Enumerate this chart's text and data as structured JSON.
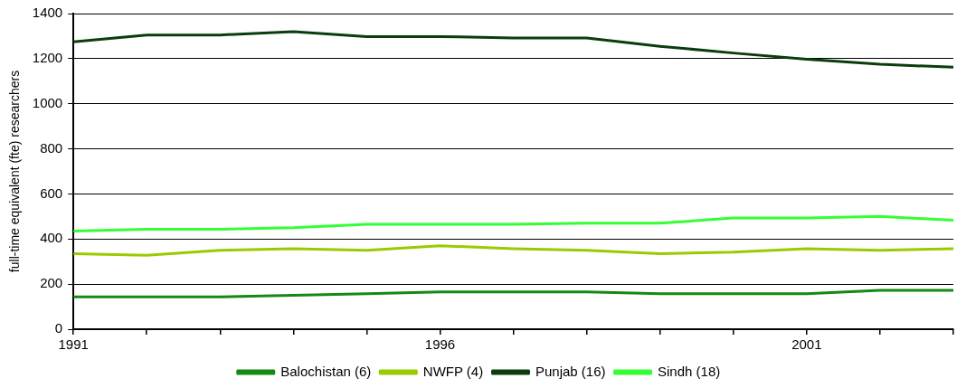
{
  "chart_data": {
    "type": "line",
    "ylabel": "full-time equivalent (fte) researchers",
    "x": [
      1991,
      1992,
      1993,
      1994,
      1995,
      1996,
      1997,
      1998,
      1999,
      2000,
      2001,
      2002,
      2003
    ],
    "xlim": [
      1991,
      2003
    ],
    "xticks": [
      1991,
      {
        "value": 1992,
        "label": null
      },
      {
        "value": 1993,
        "label": null
      },
      {
        "value": 1994,
        "label": null
      },
      {
        "value": 1995,
        "label": null
      },
      1996,
      {
        "value": 1997,
        "label": null
      },
      {
        "value": 1998,
        "label": null
      },
      {
        "value": 1999,
        "label": null
      },
      {
        "value": 2000,
        "label": null
      },
      2001,
      {
        "value": 2002,
        "label": null
      },
      {
        "value": 2003,
        "label": null
      }
    ],
    "ylim": [
      0,
      1400
    ],
    "yticks": [
      0,
      200,
      400,
      600,
      800,
      1000,
      1200,
      1400
    ],
    "grid": "y",
    "legend": "bottom",
    "marker": "none",
    "line_style": "solid",
    "series": [
      {
        "name": "Balochistan (6)",
        "color": "#138a13",
        "values": [
          143,
          143,
          143,
          150,
          157,
          165,
          165,
          165,
          157,
          157,
          157,
          172,
          172
        ]
      },
      {
        "name": "NWFP (4)",
        "color": "#99cc00",
        "values": [
          335,
          328,
          350,
          357,
          350,
          370,
          357,
          350,
          335,
          342,
          357,
          350,
          357
        ]
      },
      {
        "name": "Punjab (16)",
        "color": "#0b3d0b",
        "values": [
          1275,
          1305,
          1305,
          1320,
          1298,
          1298,
          1292,
          1292,
          1255,
          1225,
          1197,
          1175,
          1162
        ]
      },
      {
        "name": "Sindh (18)",
        "color": "#33ff33",
        "values": [
          435,
          443,
          443,
          450,
          465,
          465,
          465,
          470,
          470,
          493,
          493,
          500,
          483
        ]
      }
    ]
  }
}
